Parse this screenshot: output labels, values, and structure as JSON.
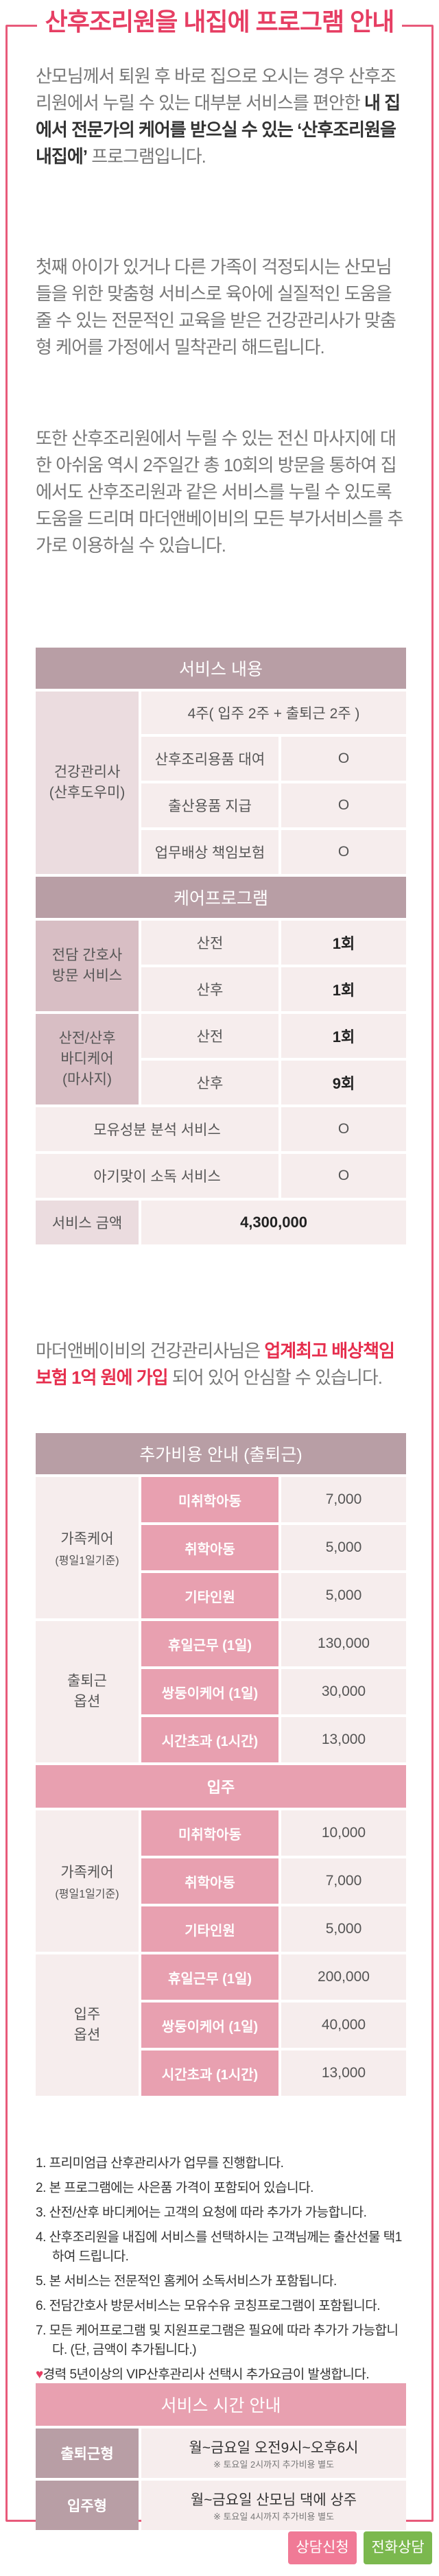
{
  "title": "산후조리원을 내집에 프로그램 안내",
  "intro": {
    "p1_a": "산모님께서 퇴원 후 바로 집으로 오시는 경우 산후조리원에서 누릴 수 있는 대부분 서비스를 편안한 ",
    "p1_b": "내 집에서 전문가의 케어를 받으실 수 있는 ‘산후조리원을 내집에’",
    "p1_c": " 프로그램입니다.",
    "p2": "첫째 아이가 있거나 다른 가족이 걱정되시는 산모님들을 위한 맞춤형 서비스로 육아에 실질적인 도움을 줄 수 있는 전문적인 교육을 받은 건강관리사가 맞춤형 케어를 가정에서 밀착관리 해드립니다.",
    "p3": "또한 산후조리원에서 누릴 수 있는 전신 마사지에 대한 아쉬움 역시 2주일간 총 10회의 방문을 통하여 집에서도 산후조리원과 같은 서비스를 누릴 수 있도록 도움을 드리며 마더앤베이비의 모든 부가서비스를 추가로 이용하실 수 있습니다."
  },
  "service": {
    "header": "서비스 내용",
    "period": "4주( 입주 2주 + 출퇴근 2주 )",
    "manager": "건강관리사\n(산후도우미)",
    "rows": [
      {
        "label": "산후조리용품 대여",
        "mark": "O"
      },
      {
        "label": "출산용품 지급",
        "mark": "O"
      },
      {
        "label": "업무배상 책임보험",
        "mark": "O"
      }
    ],
    "care_header": "케어프로그램",
    "nurse": "전담 간호사\n방문 서비스",
    "body_care": "산전/산후\n바디케어\n(마사지)",
    "pre": "산전",
    "post": "산후",
    "nurse_pre": "1회",
    "nurse_post": "1회",
    "body_pre": "1회",
    "body_post": "9회",
    "breast": "모유성분 분석 서비스",
    "breast_mark": "O",
    "disinfect": "아기맞이 소독 서비스",
    "disinfect_mark": "O",
    "price_label": "서비스 금액",
    "price": "4,300,000"
  },
  "insurance": {
    "line1": "마더앤베이비의 건강관리사님은 ",
    "line2": "업계최고 배상책임보험 1억 원에 가입",
    "line3": " 되어 있어 안심할 수 있습니다."
  },
  "extra": {
    "header": "추가비용 안내 (출퇴근)",
    "family": "가족케어",
    "family_sub": "(평일1일기준)",
    "commute": "출퇴근\n옵션",
    "rows1": [
      {
        "label": "미취학아동",
        "price": "7,000"
      },
      {
        "label": "취학아동",
        "price": "5,000"
      },
      {
        "label": "기타인원",
        "price": "5,000"
      }
    ],
    "rows2": [
      {
        "label": "휴일근무 (1일)",
        "price": "130,000"
      },
      {
        "label": "쌍둥이케어 (1일)",
        "price": "30,000"
      },
      {
        "label": "시간초과 (1시간)",
        "price": "13,000"
      }
    ],
    "live_header": "입주",
    "live_option": "입주\n옵션",
    "rows3": [
      {
        "label": "미취학아동",
        "price": "10,000"
      },
      {
        "label": "취학아동",
        "price": "7,000"
      },
      {
        "label": "기타인원",
        "price": "5,000"
      }
    ],
    "rows4": [
      {
        "label": "휴일근무 (1일)",
        "price": "200,000"
      },
      {
        "label": "쌍둥이케어 (1일)",
        "price": "40,000"
      },
      {
        "label": "시간초과 (1시간)",
        "price": "13,000"
      }
    ]
  },
  "notes": [
    "1. 프리미엄급 산후관리사가 업무를 진행합니다.",
    "2. 본 프로그램에는 사은품 가격이 포함되어 있습니다.",
    "3. 산전/산후 바디케어는 고객의 요청에 따라 추가가 가능합니다.",
    "4. 산후조리원을 내집에 서비스를 선택하시는 고객님께는 출산선물 택1하여 드립니다.",
    "5. 본 서비스는 전문적인 홈케어 소독서비스가 포함됩니다.",
    "6. 전담간호사 방문서비스는 모유수유 코칭프로그램이 포함됩니다.",
    "7. 모든 케어프로그램 및 지원프로그램은 필요에 따라 추가가 가능합니다. (단, 금액이 추가됩니다.)"
  ],
  "heart_note": "경력 5년이상의 VIP산후관리사 선택시 추가요금이 발생합니다.",
  "hours": {
    "header": "서비스 시간 안내",
    "commute_label": "출퇴근형",
    "commute_time": "월~금요일 오전9시~오후6시",
    "commute_sub": "※ 토요일 2시까지 추가비용 별도",
    "live_label": "입주형",
    "live_time": "월~금요일 산모님 댁에 상주",
    "live_sub": "※ 토요일 4시까지 추가비용 별도"
  },
  "buttons": {
    "consult": "상담신청",
    "phone": "전화상담"
  },
  "colors": {
    "accent": "#e63e63",
    "consult": "#f07a96",
    "phone": "#7bb84e"
  }
}
